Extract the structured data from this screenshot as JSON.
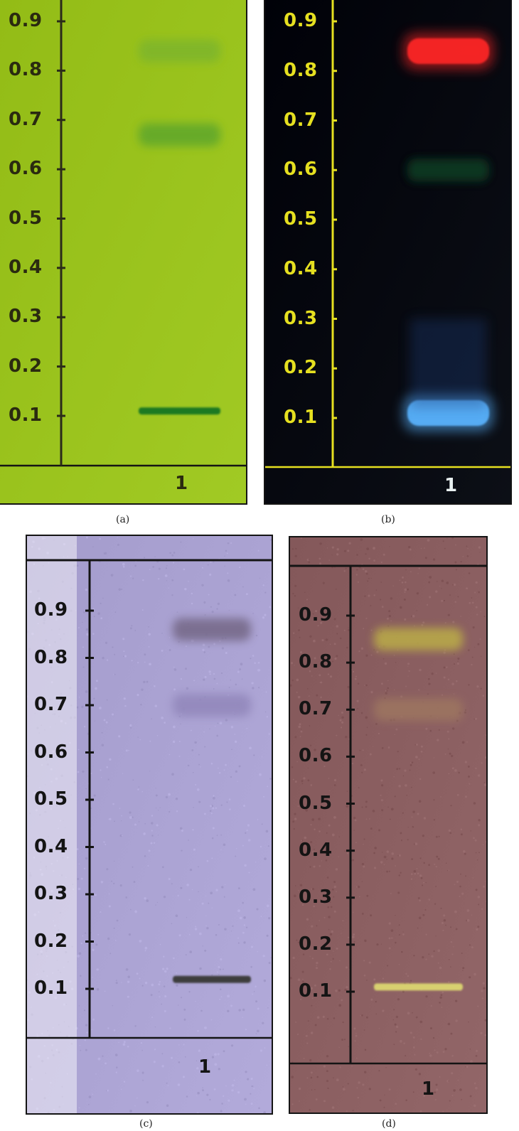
{
  "rf_ticks": [
    "0.9",
    "0.8",
    "0.7",
    "0.6",
    "0.5",
    "0.4",
    "0.3",
    "0.2",
    "0.1"
  ],
  "panels": [
    {
      "id": "a",
      "caption": "(a)",
      "lane_label": "1",
      "background": "#99c21c",
      "axis_color": "#2a2a1a",
      "tick_label_color": "#2a2a10",
      "lane_label_color": "#2a2a10",
      "bands": [
        {
          "rf": 0.84,
          "color": "#7fb62a",
          "style": "diffuse"
        },
        {
          "rf": 0.67,
          "color": "#62a82a",
          "style": "diffuse"
        },
        {
          "rf": 0.11,
          "color": "#1f7a22",
          "style": "sharp"
        }
      ]
    },
    {
      "id": "b",
      "caption": "(b)",
      "lane_label": "1",
      "background": "#04070e",
      "axis_color": "#e6e020",
      "tick_label_color": "#e6e020",
      "lane_label_color": "#e8f0f0",
      "bands": [
        {
          "rf": 0.84,
          "color": "#ff2626",
          "style": "glow"
        },
        {
          "rf": 0.6,
          "color": "#0f3a24",
          "style": "diffuse"
        },
        {
          "rf": 0.11,
          "color": "#5ab4ff",
          "style": "glow"
        }
      ]
    },
    {
      "id": "c",
      "caption": "(c)",
      "lane_label": "1",
      "background": "#aaa2d2",
      "axis_color": "#141414",
      "tick_label_color": "#141414",
      "lane_label_color": "#141414",
      "bands": [
        {
          "rf": 0.86,
          "color": "#776a8a",
          "style": "diffuse"
        },
        {
          "rf": 0.7,
          "color": "#9388bc",
          "style": "diffuse"
        },
        {
          "rf": 0.12,
          "color": "#3c3c3c",
          "style": "sharp"
        }
      ]
    },
    {
      "id": "d",
      "caption": "(d)",
      "lane_label": "1",
      "background": "#8a5e60",
      "axis_color": "#141414",
      "tick_label_color": "#141414",
      "lane_label_color": "#141414",
      "bands": [
        {
          "rf": 0.85,
          "color": "#b8a848",
          "style": "diffuse"
        },
        {
          "rf": 0.7,
          "color": "#9c7460",
          "style": "diffuse"
        },
        {
          "rf": 0.11,
          "color": "#d8d070",
          "style": "sharp"
        }
      ]
    }
  ]
}
